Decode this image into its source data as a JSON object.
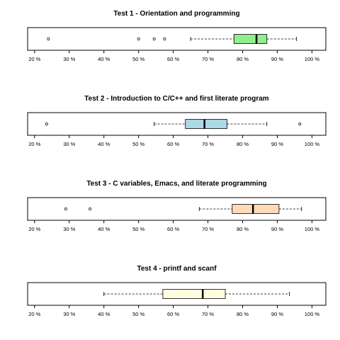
{
  "chart_data": [
    {
      "type": "boxplot",
      "orientation": "horizontal",
      "title": "Test 1 - Orientation and programming",
      "x_ticks": [
        20,
        30,
        40,
        50,
        60,
        70,
        80,
        90,
        100
      ],
      "x_tick_labels": [
        "20 %",
        "30 %",
        "40 %",
        "50 %",
        "60 %",
        "70 %",
        "80 %",
        "90 %",
        "100 %"
      ],
      "xlim": [
        18,
        104
      ],
      "box": {
        "whisker_low": 65,
        "q1": 77.5,
        "median": 84,
        "q3": 87,
        "whisker_high": 95.5
      },
      "outliers": [
        24,
        50,
        54.5,
        57.5
      ],
      "fill": "#90EE90"
    },
    {
      "type": "boxplot",
      "orientation": "horizontal",
      "title": "Test 2 - Introduction to C/C++ and first literate program",
      "x_ticks": [
        20,
        30,
        40,
        50,
        60,
        70,
        80,
        90,
        100
      ],
      "x_tick_labels": [
        "20 %",
        "30 %",
        "40 %",
        "50 %",
        "60 %",
        "70 %",
        "80 %",
        "90 %",
        "100 %"
      ],
      "xlim": [
        18,
        104
      ],
      "box": {
        "whisker_low": 54.5,
        "q1": 63.5,
        "median": 69,
        "q3": 75.5,
        "whisker_high": 87
      },
      "outliers": [
        23.5,
        96.5
      ],
      "fill": "#ADD8E6"
    },
    {
      "type": "boxplot",
      "orientation": "horizontal",
      "title": "Test 3 - C variables, Emacs, and literate programming",
      "x_ticks": [
        20,
        30,
        40,
        50,
        60,
        70,
        80,
        90,
        100
      ],
      "x_tick_labels": [
        "20 %",
        "30 %",
        "40 %",
        "50 %",
        "60 %",
        "70 %",
        "80 %",
        "90 %",
        "100 %"
      ],
      "xlim": [
        18,
        104
      ],
      "box": {
        "whisker_low": 67.5,
        "q1": 77,
        "median": 83,
        "q3": 90.5,
        "whisker_high": 97
      },
      "outliers": [
        29,
        36
      ],
      "fill": "#FFDAB9"
    },
    {
      "type": "boxplot",
      "orientation": "horizontal",
      "title": "Test 4 - printf and scanf",
      "x_ticks": [
        20,
        30,
        40,
        50,
        60,
        70,
        80,
        90,
        100
      ],
      "x_tick_labels": [
        "20 %",
        "30 %",
        "40 %",
        "50 %",
        "60 %",
        "70 %",
        "80 %",
        "90 %",
        "100 %"
      ],
      "xlim": [
        18,
        104
      ],
      "box": {
        "whisker_low": 40,
        "q1": 57,
        "median": 68.5,
        "q3": 75,
        "whisker_high": 93.5
      },
      "outliers": [],
      "fill": "#FFFFE0"
    }
  ]
}
